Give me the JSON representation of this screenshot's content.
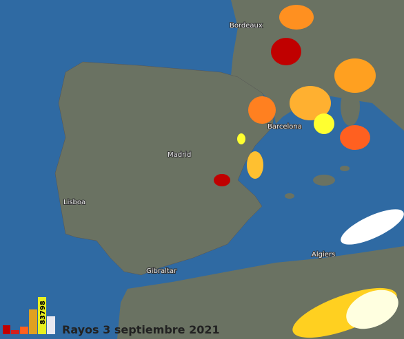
{
  "map": {
    "title": "Rayos 3 septiembre 2021",
    "total": 83798,
    "cities": [
      "Bordeaux",
      "Barcelona",
      "Madrid",
      "Lisboa",
      "Gibraltar",
      "Algiers"
    ]
  }
}
